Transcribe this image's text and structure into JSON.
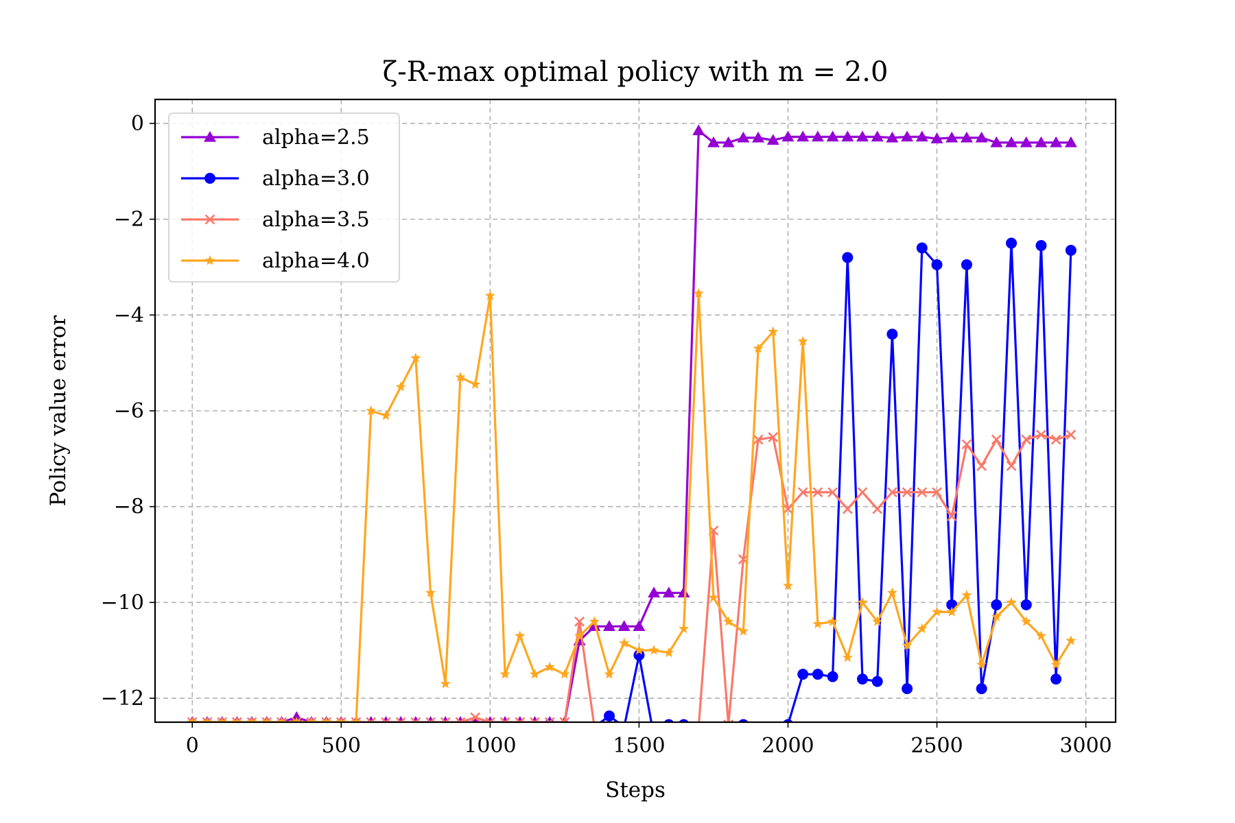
{
  "chart_data": {
    "type": "line",
    "title": "ζ-R-max optimal policy with m = 2.0",
    "xlabel": "Steps",
    "ylabel": "Policy value error",
    "xlim": [
      -125,
      3100
    ],
    "ylim": [
      -12.5,
      0.5
    ],
    "xticks": [
      0,
      500,
      1000,
      1500,
      2000,
      2500,
      3000
    ],
    "xtick_labels": [
      "0",
      "500",
      "1000",
      "1500",
      "2000",
      "2500",
      "3000"
    ],
    "yticks": [
      0,
      -2,
      -4,
      -6,
      -8,
      -10,
      -12
    ],
    "ytick_labels": [
      "0",
      "−2",
      "−4",
      "−6",
      "−8",
      "−10",
      "−12"
    ],
    "grid": true,
    "legend_position": "upper-left",
    "x": [
      0,
      50,
      100,
      150,
      200,
      250,
      300,
      350,
      400,
      450,
      500,
      550,
      600,
      650,
      700,
      750,
      800,
      850,
      900,
      950,
      1000,
      1050,
      1100,
      1150,
      1200,
      1250,
      1300,
      1350,
      1400,
      1450,
      1500,
      1550,
      1600,
      1650,
      1700,
      1750,
      1800,
      1850,
      1900,
      1950,
      2000,
      2050,
      2100,
      2150,
      2200,
      2250,
      2300,
      2350,
      2400,
      2450,
      2500,
      2550,
      2600,
      2650,
      2700,
      2750,
      2800,
      2850,
      2900,
      2950
    ],
    "series": [
      {
        "name": "alpha=2.5",
        "color": "#9400d3",
        "marker": "triangle",
        "values": [
          -12.5,
          -12.5,
          -12.5,
          -12.5,
          -12.5,
          -12.5,
          -12.5,
          -12.4,
          -12.5,
          -12.5,
          -12.5,
          -12.5,
          -12.5,
          -12.5,
          -12.5,
          -12.5,
          -12.5,
          -12.5,
          -12.5,
          -12.5,
          -12.5,
          -12.5,
          -12.5,
          -12.5,
          -12.5,
          -12.5,
          -10.8,
          -10.5,
          -10.5,
          -10.5,
          -10.5,
          -9.8,
          -9.8,
          -9.8,
          -0.15,
          -0.4,
          -0.4,
          -0.3,
          -0.3,
          -0.35,
          -0.28,
          -0.28,
          -0.28,
          -0.28,
          -0.28,
          -0.28,
          -0.28,
          -0.3,
          -0.28,
          -0.28,
          -0.32,
          -0.3,
          -0.3,
          -0.3,
          -0.4,
          -0.4,
          -0.4,
          -0.4,
          -0.4,
          -0.4
        ]
      },
      {
        "name": "alpha=3.0",
        "color": "#0000ff",
        "marker": "circle",
        "values": [
          -12.6,
          -12.6,
          -12.55,
          -12.6,
          -12.6,
          -12.55,
          -12.6,
          -12.6,
          -12.6,
          -12.6,
          -12.6,
          -12.6,
          -12.6,
          -12.6,
          -12.6,
          -12.6,
          -12.6,
          -12.6,
          -12.6,
          -12.6,
          -12.6,
          -12.6,
          -12.6,
          -12.6,
          -12.55,
          -12.6,
          -12.6,
          -12.6,
          -12.37,
          -12.6,
          -11.1,
          -12.8,
          -12.55,
          -12.55,
          -12.6,
          -12.6,
          -12.6,
          -12.55,
          -12.6,
          -12.6,
          -12.55,
          -11.5,
          -11.5,
          -11.55,
          -2.8,
          -11.6,
          -11.65,
          -4.4,
          -11.8,
          -2.6,
          -2.95,
          -10.05,
          -2.95,
          -11.8,
          -10.05,
          -2.5,
          -10.05,
          -2.55,
          -11.6,
          -2.65
        ]
      },
      {
        "name": "alpha=3.5",
        "color": "#fa7869",
        "marker": "x",
        "values": [
          -12.5,
          -12.5,
          -12.5,
          -12.5,
          -12.5,
          -12.5,
          -12.5,
          -12.5,
          -12.5,
          -12.5,
          -12.5,
          -12.5,
          -12.5,
          -12.5,
          -12.5,
          -12.5,
          -12.5,
          -12.5,
          -12.5,
          -12.4,
          -12.5,
          -12.5,
          -12.5,
          -12.5,
          -12.5,
          -12.5,
          -10.4,
          -12.6,
          -12.6,
          -12.6,
          -12.6,
          -12.6,
          -12.6,
          -12.6,
          -12.6,
          -8.5,
          -12.55,
          -9.1,
          -6.6,
          -6.55,
          -8.05,
          -7.7,
          -7.7,
          -7.7,
          -8.05,
          -7.7,
          -8.05,
          -7.7,
          -7.7,
          -7.7,
          -7.7,
          -8.2,
          -6.7,
          -7.15,
          -6.6,
          -7.15,
          -6.6,
          -6.5,
          -6.6,
          -6.5
        ]
      },
      {
        "name": "alpha=4.0",
        "color": "#ffa61f",
        "marker": "star",
        "values": [
          -12.5,
          -12.5,
          -12.5,
          -12.5,
          -12.5,
          -12.5,
          -12.5,
          -12.5,
          -12.5,
          -12.5,
          -12.5,
          -12.5,
          -6.0,
          -6.1,
          -5.5,
          -4.9,
          -9.8,
          -11.7,
          -5.3,
          -5.45,
          -3.6,
          -11.5,
          -10.7,
          -11.5,
          -11.35,
          -11.5,
          -10.7,
          -10.4,
          -11.5,
          -10.85,
          -11.0,
          -11.0,
          -11.05,
          -10.55,
          -3.55,
          -9.9,
          -10.4,
          -10.6,
          -4.7,
          -4.35,
          -9.65,
          -4.55,
          -10.45,
          -10.4,
          -11.15,
          -10.0,
          -10.4,
          -9.8,
          -10.9,
          -10.55,
          -10.2,
          -10.2,
          -9.85,
          -11.3,
          -10.3,
          -10.0,
          -10.4,
          -10.7,
          -11.3,
          -10.8
        ]
      }
    ]
  }
}
